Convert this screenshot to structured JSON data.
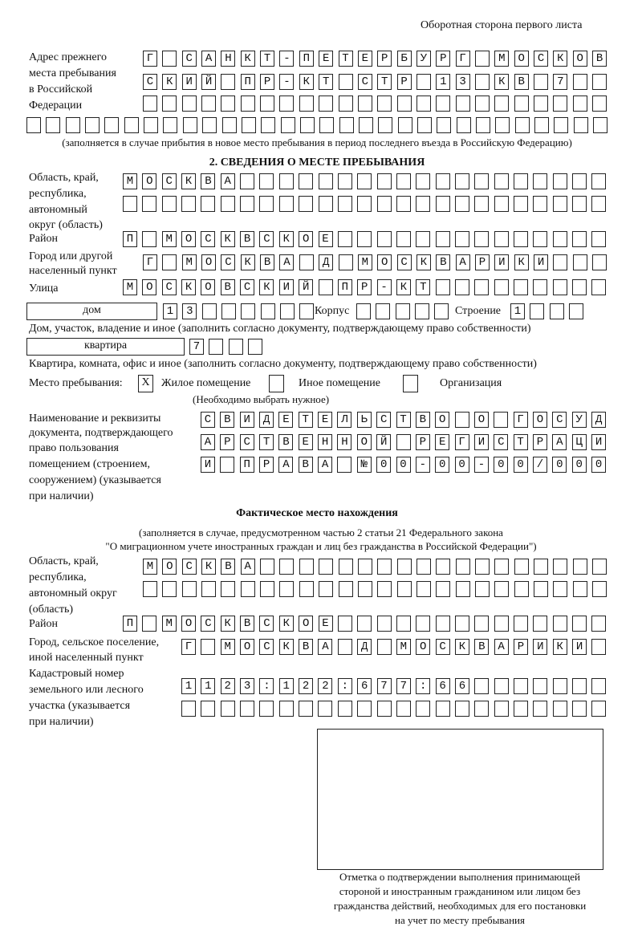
{
  "header": {
    "side_note": "Оборотная сторона первого листа"
  },
  "prev_address": {
    "label": [
      "Адрес прежнего",
      "места пребывания",
      "в Российской",
      "Федерации"
    ],
    "rows": [
      "Г САНКТ-ПЕТЕРБУРГ МОСКОВ",
      "СКИЙ ПР-КТ СТР 13 КВ 7",
      "",
      ""
    ],
    "note": "(заполняется в случае прибытия в новое место пребывания в период последнего въезда в Российскую Федерацию)"
  },
  "section2": {
    "title": "2. СВЕДЕНИЯ О МЕСТЕ ПРЕБЫВАНИЯ",
    "region_label": [
      "Область, край,",
      "республика,",
      "автономный",
      "округ (область)"
    ],
    "region_rows": [
      "МОСКВА",
      ""
    ],
    "district_label": "Район",
    "district": "П МОСКВСКОЕ",
    "city_label": [
      "Город или другой",
      "населенный пункт"
    ],
    "city": "Г МОСКВА Д МОСКВАРИКИ",
    "street_label": "Улица",
    "street": "МОСКОВСКИЙ ПР-КТ",
    "house_type": "дом",
    "house": "13",
    "korpus_label": "Корпус",
    "korpus": "",
    "building_label": "Строение",
    "building": "1",
    "house_note": "Дом, участок, владение и иное (заполнить согласно документу, подтверждающему право собственности)",
    "flat_type": "квартира",
    "flat": "7",
    "flat_note": "Квартира, комната, офис и иное (заполнить согласно документу, подтверждающему право собственности)",
    "stay_label": "Место пребывания:",
    "stay_options": [
      {
        "label": "Жилое помещение",
        "mark": "X"
      },
      {
        "label": "Иное помещение",
        "mark": ""
      },
      {
        "label": "Организация",
        "mark": ""
      }
    ],
    "stay_note": "(Необходимо выбрать нужное)",
    "doc_label": [
      "Наименование и реквизиты",
      "документа, подтверждающего",
      "право пользования",
      "помещением (строением,",
      "сооружением) (указывается",
      "при наличии)"
    ],
    "doc_rows": [
      "СВИДЕТЕЛЬСТВО О ГОСУД",
      "АРСТВЕННОЙ РЕГИСТРАЦИ",
      "И ПРАВА №00-00-00/000"
    ]
  },
  "actual": {
    "title": "Фактическое место нахождения",
    "note": [
      "(заполняется в случае, предусмотренном частью 2 статьи 21 Федерального закона",
      "\"О миграционном учете иностранных граждан и лиц без гражданства в Российской Федерации\")"
    ],
    "region_label": [
      "Область, край,",
      "республика,",
      "автономный округ",
      "(область)"
    ],
    "region_rows": [
      "МОСКВА",
      ""
    ],
    "district_label": "Район",
    "district": "П МОСКВСКОЕ",
    "city_label": [
      "Город, сельское поселение,",
      "иной населенный пункт"
    ],
    "city": "Г МОСКВА Д МОСКВАРИКИ",
    "cadastre_label": [
      "Кадастровый номер",
      "земельного или лесного",
      "участка (указывается",
      "при наличии)"
    ],
    "cadastre_rows": [
      "1123:122:677:66",
      ""
    ]
  },
  "confirmation": {
    "caption": [
      "Отметка о подтверждении выполнения принимающей",
      "стороной и иностранным гражданином или лицом без",
      "гражданства действий, необходимых для его постановки",
      "на учет по месту пребывания"
    ]
  }
}
